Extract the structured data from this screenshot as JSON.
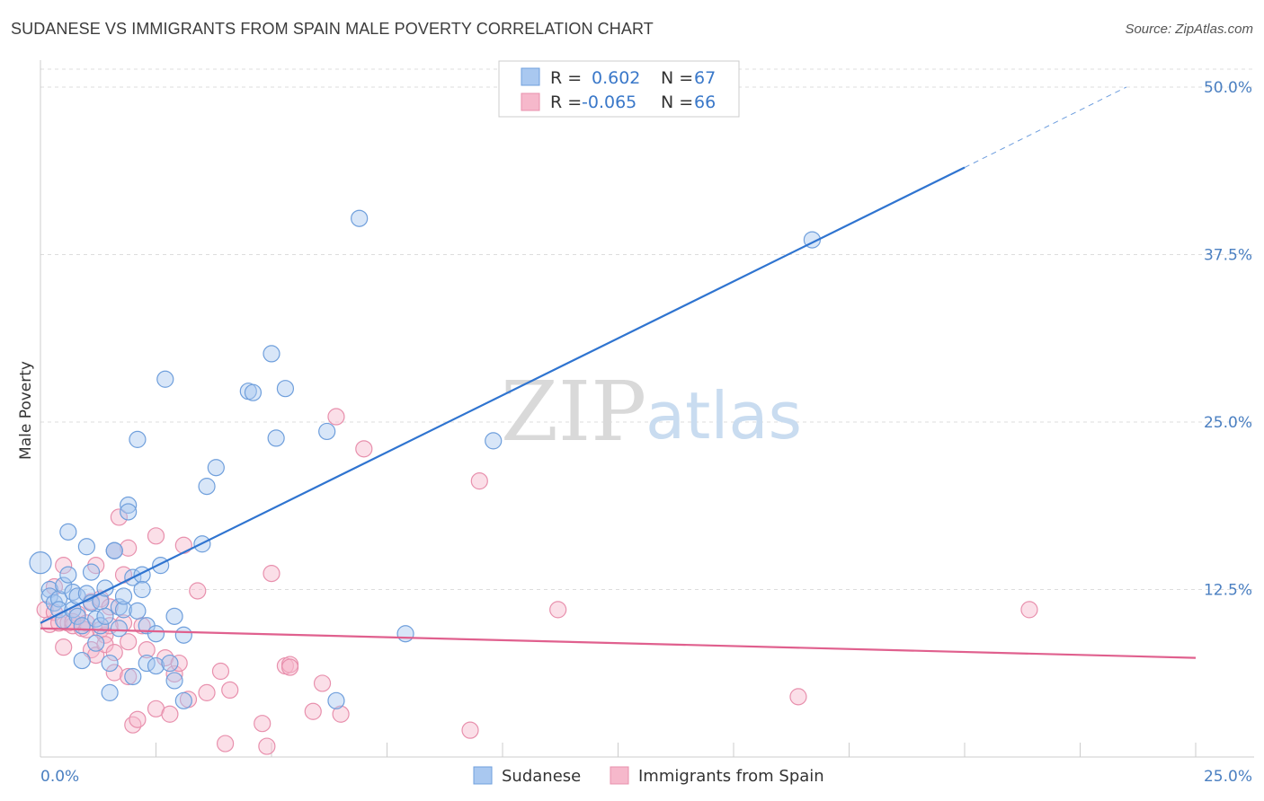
{
  "title": "SUDANESE VS IMMIGRANTS FROM SPAIN MALE POVERTY CORRELATION CHART",
  "source": "Source: ZipAtlas.com",
  "watermark": {
    "zip": "ZIP",
    "atlas": "atlas"
  },
  "legend": {
    "rows": [
      {
        "r_label": "R =",
        "r_value": "0.602",
        "n_label": "N =",
        "n_value": "67"
      },
      {
        "r_label": "R =",
        "r_value": "-0.065",
        "n_label": "N =",
        "n_value": "66"
      }
    ]
  },
  "bottom_legend": {
    "series1": "Sudanese",
    "series2": "Immigrants from Spain"
  },
  "colors": {
    "sudanese_fill": "#a9c8f0",
    "sudanese_stroke": "#6f9fdc",
    "sudanese_line": "#2f74d0",
    "spain_fill": "#f6b8cb",
    "spain_stroke": "#e890ad",
    "spain_line": "#e0608e",
    "grid": "#dddddd",
    "axis": "#cccccc",
    "tick_text": "#4a7fc1"
  },
  "chart_data": {
    "type": "scatter",
    "title": "SUDANESE VS IMMIGRANTS FROM SPAIN MALE POVERTY CORRELATION CHART",
    "xlabel": "",
    "ylabel": "Male Poverty",
    "xlim": [
      0,
      25
    ],
    "ylim": [
      0,
      50
    ],
    "x_tick_labels": [
      "0.0%",
      "25.0%"
    ],
    "y_ticks": [
      12.5,
      25.0,
      37.5,
      50.0
    ],
    "y_tick_labels": [
      "12.5%",
      "25.0%",
      "37.5%",
      "50.0%"
    ],
    "series": [
      {
        "name": "Sudanese",
        "r": 0.602,
        "n": 67,
        "trend": {
          "x0": 0,
          "y0": 10.0,
          "x1": 20,
          "y1": 44.0,
          "dash_x1": 23.5,
          "dash_y1": 50.0
        },
        "points": [
          [
            0.0,
            14.5
          ],
          [
            0.2,
            12.5
          ],
          [
            0.2,
            12.0
          ],
          [
            0.3,
            11.5
          ],
          [
            0.4,
            11.8
          ],
          [
            0.4,
            11.0
          ],
          [
            0.5,
            12.8
          ],
          [
            0.5,
            10.2
          ],
          [
            0.6,
            13.6
          ],
          [
            0.6,
            16.8
          ],
          [
            0.7,
            11.0
          ],
          [
            0.7,
            12.3
          ],
          [
            0.8,
            10.5
          ],
          [
            0.8,
            12.0
          ],
          [
            0.9,
            9.8
          ],
          [
            0.9,
            7.2
          ],
          [
            1.0,
            15.7
          ],
          [
            1.0,
            12.2
          ],
          [
            1.1,
            13.8
          ],
          [
            1.1,
            11.5
          ],
          [
            1.2,
            10.3
          ],
          [
            1.2,
            8.5
          ],
          [
            1.3,
            9.8
          ],
          [
            1.3,
            11.6
          ],
          [
            1.4,
            12.6
          ],
          [
            1.4,
            10.5
          ],
          [
            1.5,
            4.8
          ],
          [
            1.5,
            7.0
          ],
          [
            1.6,
            15.4
          ],
          [
            1.7,
            11.2
          ],
          [
            1.7,
            9.6
          ],
          [
            1.8,
            11.0
          ],
          [
            1.8,
            12.0
          ],
          [
            1.9,
            18.8
          ],
          [
            1.9,
            18.3
          ],
          [
            2.0,
            13.4
          ],
          [
            2.0,
            6.0
          ],
          [
            2.1,
            10.9
          ],
          [
            2.1,
            23.7
          ],
          [
            2.2,
            13.6
          ],
          [
            2.2,
            12.5
          ],
          [
            2.3,
            9.8
          ],
          [
            2.3,
            7.0
          ],
          [
            2.5,
            9.2
          ],
          [
            2.5,
            6.8
          ],
          [
            2.6,
            14.3
          ],
          [
            2.7,
            28.2
          ],
          [
            2.8,
            7.0
          ],
          [
            2.9,
            10.5
          ],
          [
            2.9,
            5.7
          ],
          [
            3.1,
            4.2
          ],
          [
            3.1,
            9.1
          ],
          [
            3.5,
            15.9
          ],
          [
            3.6,
            20.2
          ],
          [
            3.8,
            21.6
          ],
          [
            4.5,
            27.3
          ],
          [
            4.6,
            27.2
          ],
          [
            5.0,
            30.1
          ],
          [
            5.1,
            23.8
          ],
          [
            5.3,
            27.5
          ],
          [
            6.2,
            24.3
          ],
          [
            6.4,
            4.2
          ],
          [
            6.9,
            40.2
          ],
          [
            7.9,
            9.2
          ],
          [
            9.8,
            23.6
          ],
          [
            16.7,
            38.6
          ],
          [
            1.6,
            15.4
          ]
        ]
      },
      {
        "name": "Immigrants from Spain",
        "r": -0.065,
        "n": 66,
        "trend": {
          "x0": 0,
          "y0": 9.6,
          "x1": 25,
          "y1": 7.4
        },
        "points": [
          [
            0.1,
            11.0
          ],
          [
            0.2,
            9.9
          ],
          [
            0.3,
            12.7
          ],
          [
            0.3,
            10.8
          ],
          [
            0.4,
            10.0
          ],
          [
            0.5,
            8.2
          ],
          [
            0.5,
            14.3
          ],
          [
            0.6,
            10.0
          ],
          [
            0.7,
            9.8
          ],
          [
            0.8,
            10.7
          ],
          [
            0.9,
            9.6
          ],
          [
            1.0,
            9.5
          ],
          [
            1.0,
            10.0
          ],
          [
            1.1,
            8.0
          ],
          [
            1.1,
            11.6
          ],
          [
            1.2,
            14.3
          ],
          [
            1.2,
            7.6
          ],
          [
            1.3,
            11.8
          ],
          [
            1.3,
            9.5
          ],
          [
            1.4,
            9.1
          ],
          [
            1.4,
            8.4
          ],
          [
            1.5,
            11.2
          ],
          [
            1.6,
            6.3
          ],
          [
            1.6,
            7.8
          ],
          [
            1.6,
            15.4
          ],
          [
            1.7,
            17.9
          ],
          [
            1.8,
            10.0
          ],
          [
            1.8,
            13.6
          ],
          [
            1.9,
            8.6
          ],
          [
            1.9,
            15.6
          ],
          [
            1.9,
            6.0
          ],
          [
            2.0,
            2.4
          ],
          [
            2.1,
            2.8
          ],
          [
            2.2,
            9.8
          ],
          [
            2.3,
            8.0
          ],
          [
            2.5,
            16.5
          ],
          [
            2.5,
            3.6
          ],
          [
            2.7,
            7.4
          ],
          [
            2.8,
            3.2
          ],
          [
            2.9,
            6.2
          ],
          [
            3.0,
            7.0
          ],
          [
            3.1,
            15.8
          ],
          [
            3.2,
            4.3
          ],
          [
            3.4,
            12.4
          ],
          [
            3.6,
            4.8
          ],
          [
            3.9,
            6.4
          ],
          [
            4.0,
            1.0
          ],
          [
            4.1,
            5.0
          ],
          [
            4.8,
            2.5
          ],
          [
            4.9,
            0.8
          ],
          [
            5.0,
            13.7
          ],
          [
            5.3,
            6.8
          ],
          [
            5.4,
            6.9
          ],
          [
            5.4,
            6.7
          ],
          [
            5.9,
            3.4
          ],
          [
            6.1,
            5.5
          ],
          [
            6.4,
            25.4
          ],
          [
            6.5,
            3.2
          ],
          [
            7.0,
            23.0
          ],
          [
            9.3,
            2.0
          ],
          [
            9.5,
            20.6
          ],
          [
            11.2,
            11.0
          ],
          [
            16.4,
            4.5
          ],
          [
            21.4,
            11.0
          ],
          [
            1.5,
            9.8
          ],
          [
            0.7,
            10.1
          ]
        ]
      }
    ]
  }
}
